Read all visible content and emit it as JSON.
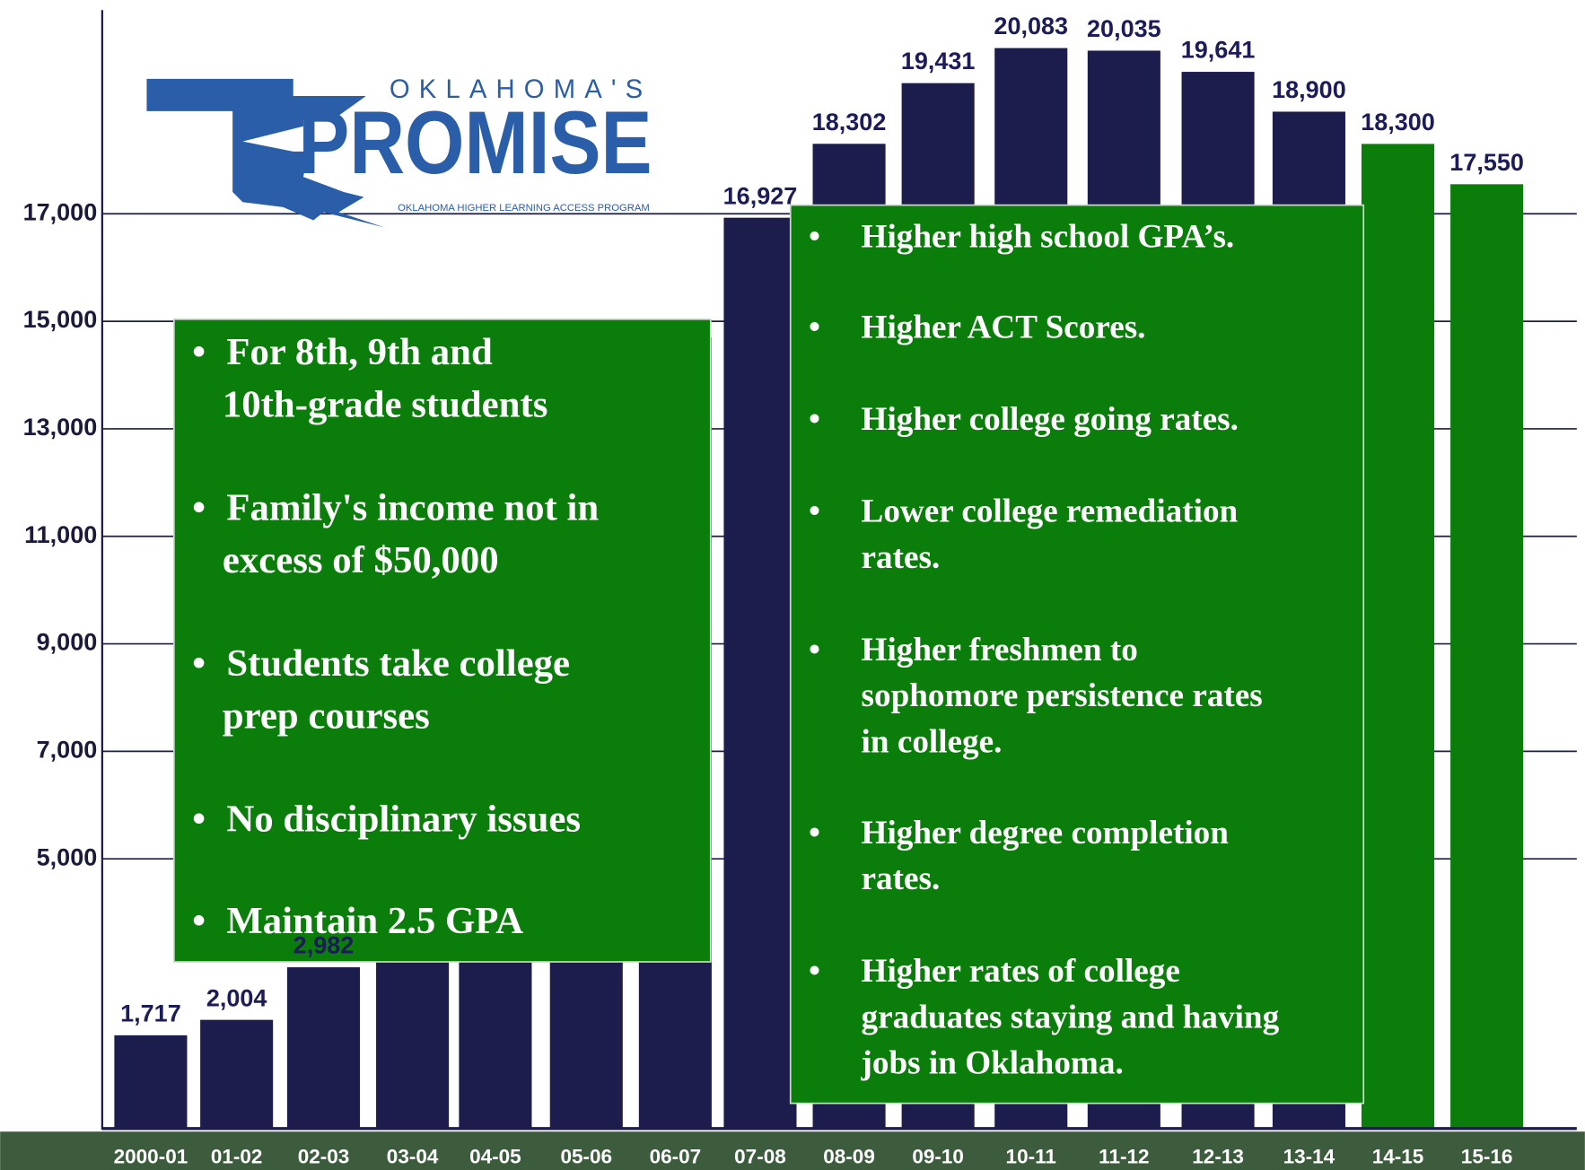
{
  "chart_data": {
    "type": "bar",
    "categories": [
      "2000-01",
      "01-02",
      "02-03",
      "03-04",
      "04-05",
      "05-06",
      "06-07",
      "07-08",
      "08-09",
      "09-10",
      "10-11",
      "11-12",
      "12-13",
      "13-14",
      "14-15",
      "15-16"
    ],
    "values": [
      1717,
      2004,
      2982,
      5900,
      9000,
      12000,
      14700,
      16927,
      18302,
      19431,
      20083,
      20035,
      19641,
      18900,
      18300,
      17550
    ],
    "value_labels": [
      "1,717",
      "2,004",
      "2,982",
      null,
      null,
      null,
      null,
      "16,927",
      "18,302",
      "19,431",
      "20,083",
      "20,035",
      "19,641",
      "18,900",
      "18,300",
      "17,550"
    ],
    "colors": [
      "#1c1c4d",
      "#1c1c4d",
      "#1c1c4d",
      "#1c1c4d",
      "#1c1c4d",
      "#1c1c4d",
      "#1c1c4d",
      "#1c1c4d",
      "#1c1c4d",
      "#1c1c4d",
      "#1c1c4d",
      "#1c1c4d",
      "#1c1c4d",
      "#1c1c4d",
      "#0a7d0a",
      "#0a7d0a"
    ],
    "ylim": [
      0,
      21000
    ],
    "yticks": [
      {
        "value": 5000,
        "label": "5,000"
      },
      {
        "value": 7000,
        "label": "7,000"
      },
      {
        "value": 9000,
        "label": "9,000"
      },
      {
        "value": 11000,
        "label": "11,000"
      },
      {
        "value": 13000,
        "label": "13,000"
      },
      {
        "value": 15000,
        "label": "15,000"
      },
      {
        "value": 17000,
        "label": "17,000"
      }
    ],
    "grid": true,
    "logo": {
      "top": "OKLAHOMA'S",
      "main": "PROMISE",
      "sub": "OKLAHOMA HIGHER LEARNING ACCESS PROGRAM"
    },
    "annotations": [
      {
        "bullets": [
          [
            "For 8th, 9th and",
            "10th-grade students"
          ],
          [
            "Family's income not in",
            "excess of $50,000"
          ],
          [
            "Students take college",
            " prep courses"
          ],
          [
            "No disciplinary issues"
          ],
          [
            "Maintain 2.5 GPA"
          ]
        ]
      },
      {
        "bullets": [
          [
            "Higher high school GPA’s."
          ],
          [
            "Higher ACT Scores."
          ],
          [
            "Higher college going rates."
          ],
          [
            "Lower college remediation",
            "rates."
          ],
          [
            "Higher freshmen to",
            "sophomore persistence rates",
            "in college."
          ],
          [
            "Higher degree completion",
            "rates."
          ],
          [
            "Higher rates of college",
            "graduates staying and having",
            "jobs in Oklahoma."
          ]
        ]
      }
    ]
  }
}
